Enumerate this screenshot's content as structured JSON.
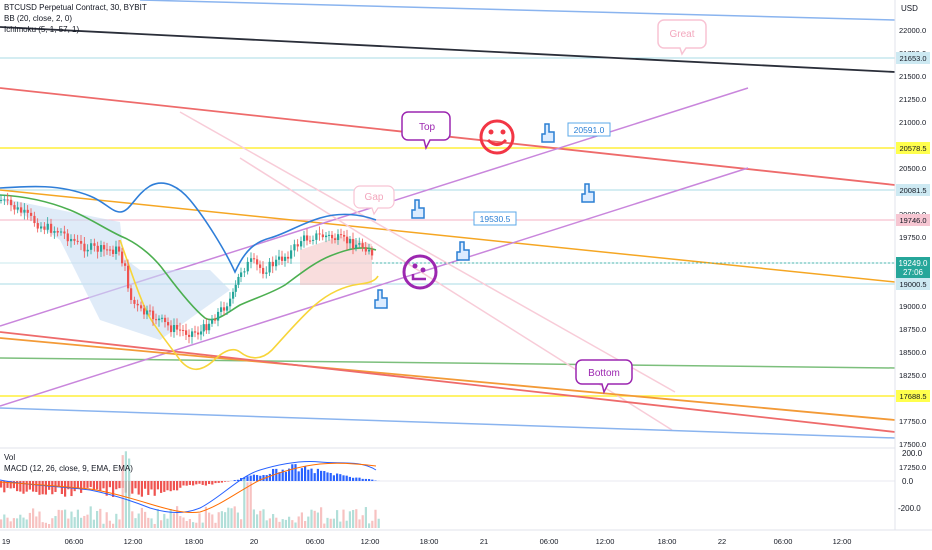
{
  "legend": {
    "symbol": "BTCUSD Perpetual Contract, 30, BYBIT",
    "bb": "BB (20, close, 2, 0)",
    "ichimoku": "Ichimoku (5, 1, 57, 1)",
    "vol": "Vol",
    "macd": "MACD (12, 26, close, 9, EMA, EMA)"
  },
  "price_axis": {
    "currency": "USD",
    "ticks": [
      "22000.0",
      "21750.0",
      "21500.0",
      "21250.0",
      "21000.0",
      "20750.0",
      "20500.0",
      "20250.0",
      "20000.0",
      "19750.0",
      "19500.0",
      "19250.0",
      "19000.0",
      "18750.0",
      "18500.0",
      "18250.0",
      "18000.0",
      "17750.0",
      "17500.0",
      "17250.0"
    ],
    "line_labels": [
      {
        "text": "21653.0",
        "color": "#cde9f2"
      },
      {
        "text": "20578.5",
        "color": "#ffff4d"
      },
      {
        "text": "20081.5",
        "color": "#cde9f2"
      },
      {
        "text": "19746.0",
        "color": "#f6c6d2"
      },
      {
        "text": "19000.5",
        "color": "#cde9f2"
      },
      {
        "text": "17688.5",
        "color": "#ffff4d"
      }
    ],
    "current_price": "19249.0",
    "countdown": "27:06",
    "current_color": "#26a69a"
  },
  "macd_axis": {
    "ticks": [
      "200.0",
      "0.0",
      "-200.0"
    ]
  },
  "time_axis": {
    "ticks": [
      "19",
      "06:00",
      "12:00",
      "18:00",
      "20",
      "06:00",
      "12:00",
      "18:00",
      "21",
      "06:00",
      "12:00",
      "18:00",
      "22",
      "06:00",
      "12:00"
    ]
  },
  "annotations": {
    "top": "Top",
    "great": "Great",
    "gap": "Gap",
    "bottom": "Bottom",
    "label_20591": "20591.0",
    "label_19530": "19530.5"
  },
  "colors": {
    "up_candle": "#26a69a",
    "down_candle": "#ef5350",
    "bollinger": "#2f7ed8",
    "ichimoku_fast": "#4caf50",
    "ichimoku_slow": "#f7d53a",
    "drawing_purple": "#c77dd8",
    "drawing_red": "#ef5350",
    "drawing_orange": "#f5a623",
    "drawing_blue": "#5b9cf0",
    "drawing_pink": "#f8c4d4",
    "smiley_red": "#f23645",
    "smiley_purple": "#9c27b0",
    "hand_blue": "#2a7fd4"
  },
  "icons": [
    "smiley-happy-icon",
    "smiley-clock-icon",
    "pointing-hand-icon"
  ]
}
